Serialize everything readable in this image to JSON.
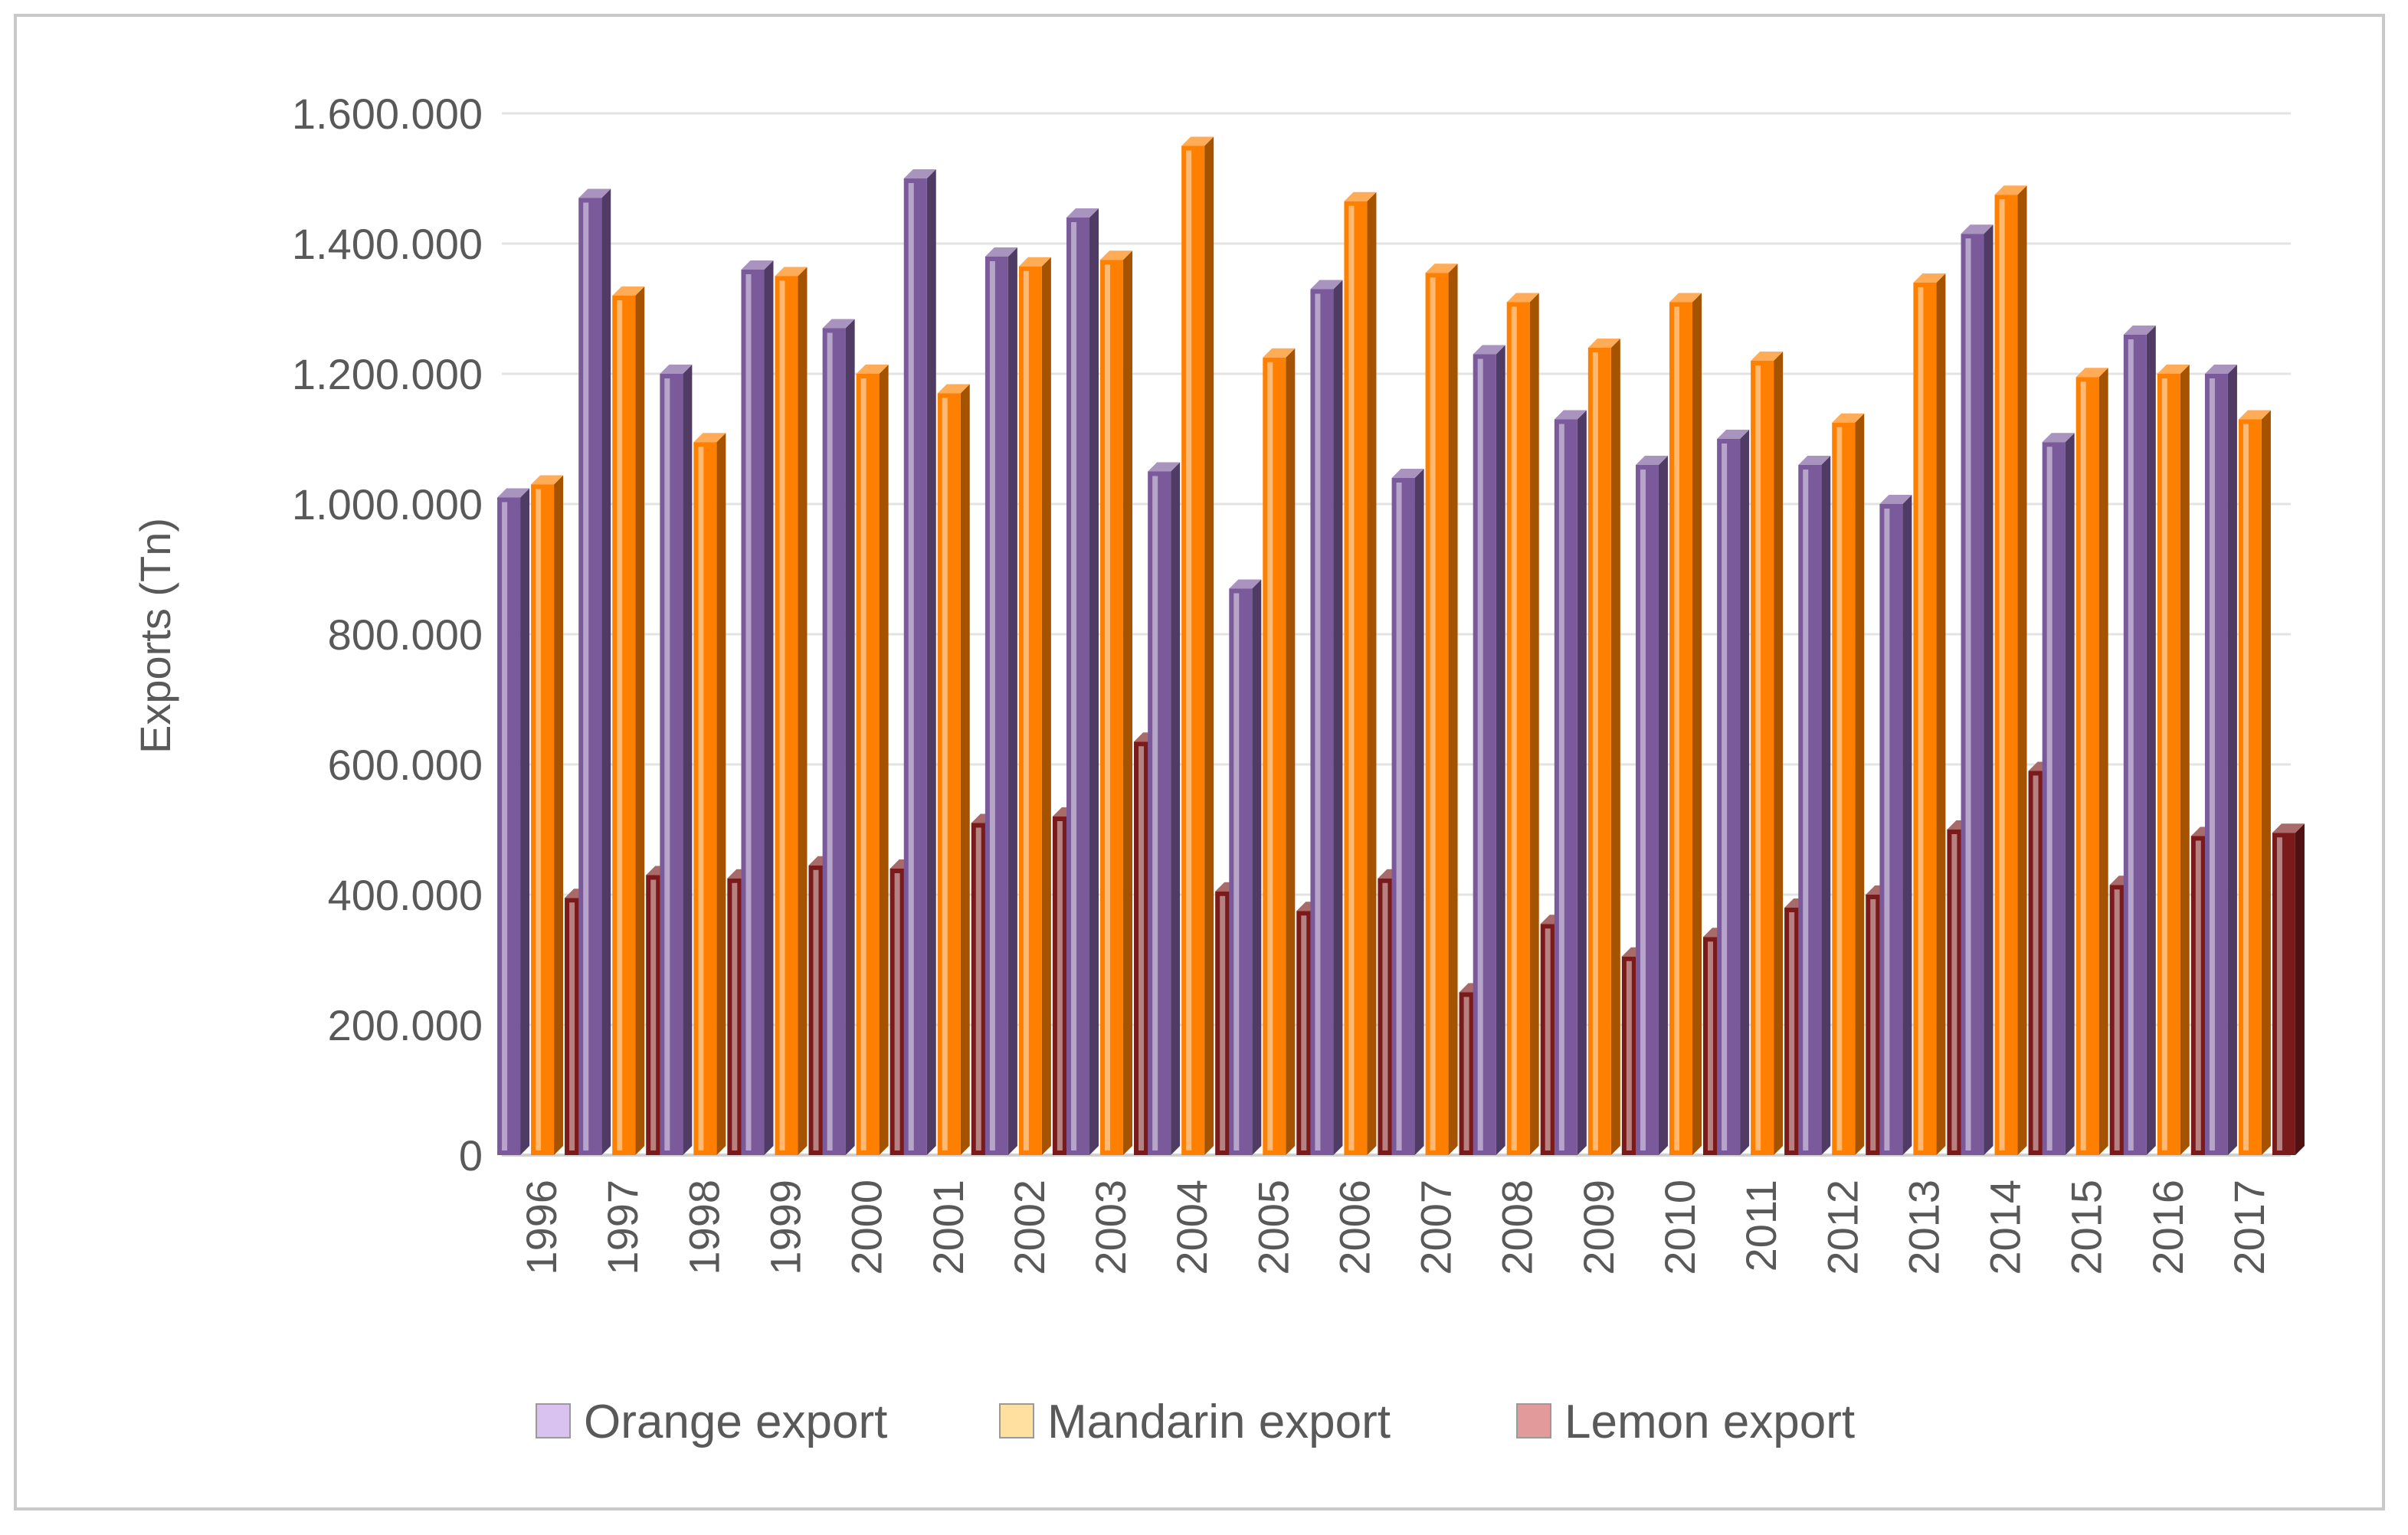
{
  "chart_data": {
    "type": "bar",
    "ylabel": "Exports (Tn)",
    "ylim": [
      0,
      1600000
    ],
    "yticks": [
      0,
      200000,
      400000,
      600000,
      800000,
      1000000,
      1200000,
      1400000,
      1600000
    ],
    "ytick_labels": [
      "0",
      "200.000",
      "400.000",
      "600.000",
      "800.000",
      "1.000.000",
      "1.200.000",
      "1.400.000",
      "1.600.000"
    ],
    "grid": true,
    "legend_position": "bottom",
    "categories": [
      "1996",
      "1997",
      "1998",
      "1999",
      "2000",
      "2001",
      "2002",
      "2003",
      "2004",
      "2005",
      "2006",
      "2007",
      "2008",
      "2009",
      "2010",
      "2011",
      "2012",
      "2013",
      "2014",
      "2015",
      "2016",
      "2017"
    ],
    "series": [
      {
        "name": "Orange export",
        "color": "#7b5a9c",
        "legend_color": "#d9c2f0",
        "values": [
          1010000,
          1470000,
          1200000,
          1360000,
          1270000,
          1500000,
          1380000,
          1440000,
          1050000,
          870000,
          1330000,
          1040000,
          1230000,
          1130000,
          1060000,
          1100000,
          1060000,
          1000000,
          1415000,
          1095000,
          1260000,
          1200000
        ]
      },
      {
        "name": "Mandarin export",
        "color": "#ff7f00",
        "legend_color": "#ffe0a0",
        "values": [
          1030000,
          1320000,
          1095000,
          1350000,
          1200000,
          1170000,
          1365000,
          1375000,
          1550000,
          1225000,
          1465000,
          1355000,
          1310000,
          1240000,
          1310000,
          1220000,
          1125000,
          1340000,
          1475000,
          1195000,
          1200000,
          1130000
        ]
      },
      {
        "name": "Lemon export",
        "color": "#7a1a1a",
        "legend_color": "#e39a9a",
        "values": [
          395000,
          430000,
          425000,
          445000,
          440000,
          510000,
          520000,
          635000,
          405000,
          375000,
          425000,
          250000,
          355000,
          305000,
          335000,
          380000,
          400000,
          500000,
          590000,
          415000,
          490000,
          495000
        ]
      }
    ]
  }
}
